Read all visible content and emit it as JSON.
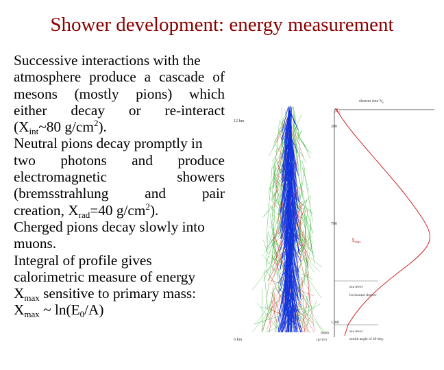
{
  "slide": {
    "title": "Shower development: energy measurement",
    "lines": [
      {
        "text": "Successive interactions with the"
      },
      {
        "text": "atmosphere produce a cascade of"
      },
      {
        "text": "mesons (mostly pions) which"
      },
      {
        "text": "either decay or re-interact"
      },
      {
        "pre": "(X",
        "sub": "int",
        "mid": "~80 g/cm",
        "sup": "2",
        "post": ")."
      },
      {
        "text": "Neutral pions decay promptly in"
      },
      {
        "text": "two photons and produce"
      },
      {
        "text": "electromagnetic showers"
      },
      {
        "text": "(bremsstrahlung and pair"
      },
      {
        "pre": "creation, X",
        "sub": "rad",
        "mid": "=40 g/cm",
        "sup": "2",
        "post": ")."
      },
      {
        "text": "Cherged pions decay slowly into"
      },
      {
        "text": "muons."
      },
      {
        "text": "Integral of profile gives"
      },
      {
        "text": "calorimetric measure of energy"
      },
      {
        "pre": "X",
        "sub": "max",
        "post": " sensitive to primary mass:"
      },
      {
        "pre": "X",
        "sub": "max",
        "mid": " ~ ln(E",
        "sub2": "0",
        "post": "/A)"
      }
    ]
  },
  "figure": {
    "labels": {
      "shower_size": "shower size N",
      "shower_size_sub": "e",
      "x0": "X",
      "x0_sub": "0",
      "height_12": "12 km",
      "height_6": "6 km",
      "xmax": "X",
      "xmax_sub": "max",
      "sea_level_1": "sea level",
      "horizontal_shower": "horizontal shower",
      "sea_level_2": "sea level",
      "zenith": "zenith angle of 40 deg.",
      "depth": "depth",
      "depth_unit": "(g/cm²)"
    },
    "ticks": [
      "200",
      "700",
      "1200"
    ],
    "colors": {
      "profile": "#cc2222",
      "em": "#1133dd",
      "hadron": "#dd2222",
      "muon": "#22aa22"
    }
  }
}
